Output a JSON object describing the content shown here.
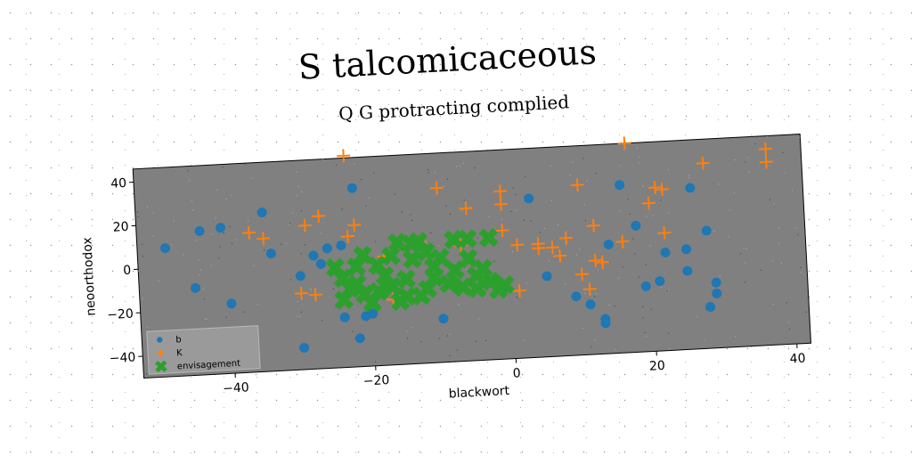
{
  "chart_data": {
    "type": "scatter",
    "title": "S talcomicaceous",
    "subtitle": "Q G protracting complied",
    "xlabel": "blackwort",
    "ylabel": "neoorthodox",
    "xlim": [
      -53,
      42
    ],
    "ylim": [
      -50,
      46
    ],
    "xticks": [
      -40,
      -20,
      0,
      20,
      40
    ],
    "yticks": [
      -40,
      -20,
      0,
      20,
      40
    ],
    "grid": false,
    "legend_position": "bottom-left",
    "background": "#808080",
    "series": [
      {
        "name": "b",
        "marker": "circle",
        "color": "#1f77b4",
        "points": [
          [
            -49,
            9
          ],
          [
            -45,
            -10
          ],
          [
            -44,
            16
          ],
          [
            -41,
            17
          ],
          [
            -40,
            -18
          ],
          [
            -35,
            23
          ],
          [
            -34,
            4
          ],
          [
            -30,
            -40
          ],
          [
            -30,
            -7
          ],
          [
            -28,
            2
          ],
          [
            -27,
            -2
          ],
          [
            -26,
            5
          ],
          [
            -24,
            6
          ],
          [
            -24,
            -27
          ],
          [
            -22,
            32
          ],
          [
            -22,
            -37
          ],
          [
            -21,
            -27
          ],
          [
            -20,
            -26
          ],
          [
            -10,
            -30
          ],
          [
            -1,
            -17
          ],
          [
            3,
            23
          ],
          [
            5,
            -13
          ],
          [
            9,
            -23
          ],
          [
            11,
            -27
          ],
          [
            13,
            -34
          ],
          [
            13,
            -36
          ],
          [
            14,
            0
          ],
          [
            16,
            27
          ],
          [
            18,
            8
          ],
          [
            19,
            -20
          ],
          [
            21,
            -18
          ],
          [
            22,
            -5
          ],
          [
            25,
            -4
          ],
          [
            25,
            -14
          ],
          [
            26,
            24
          ],
          [
            28,
            4
          ],
          [
            28,
            -31
          ],
          [
            29,
            -25
          ],
          [
            29,
            -20
          ]
        ]
      },
      {
        "name": "K",
        "marker": "plus",
        "color": "#ff7f0e",
        "points": [
          [
            -37,
            14
          ],
          [
            -35,
            11
          ],
          [
            -30,
            -15
          ],
          [
            -29,
            16
          ],
          [
            -28,
            -16
          ],
          [
            -27,
            20
          ],
          [
            -23,
            47
          ],
          [
            -23,
            10
          ],
          [
            -22,
            15
          ],
          [
            -18,
            0
          ],
          [
            -17,
            -20
          ],
          [
            -12,
            3
          ],
          [
            -10,
            30
          ],
          [
            -7,
            3
          ],
          [
            -6,
            20
          ],
          [
            -1,
            21
          ],
          [
            -1,
            27
          ],
          [
            -1,
            9
          ],
          [
            1,
            2
          ],
          [
            1,
            -19
          ],
          [
            4,
            2
          ],
          [
            4,
            0
          ],
          [
            6,
            0
          ],
          [
            7,
            -4
          ],
          [
            8,
            4
          ],
          [
            10,
            -13
          ],
          [
            10,
            28
          ],
          [
            11,
            -20
          ],
          [
            12,
            -7
          ],
          [
            12,
            9
          ],
          [
            13,
            -8
          ],
          [
            16,
            1
          ],
          [
            17,
            46
          ],
          [
            20,
            18
          ],
          [
            21,
            25
          ],
          [
            22,
            24
          ],
          [
            22,
            4
          ],
          [
            28,
            35
          ],
          [
            37,
            40
          ],
          [
            37,
            34
          ]
        ]
      },
      {
        "name": "envisagement",
        "marker": "x",
        "color": "#2ca02c",
        "points": [
          [
            -25,
            -4
          ],
          [
            -24,
            -9
          ],
          [
            -24,
            -19
          ],
          [
            -23,
            -14
          ],
          [
            -22,
            -4
          ],
          [
            -22,
            -12
          ],
          [
            -21,
            -17
          ],
          [
            -21,
            1
          ],
          [
            -20,
            -21
          ],
          [
            -19,
            -16
          ],
          [
            -19,
            -4
          ],
          [
            -18,
            -9
          ],
          [
            -17,
            0
          ],
          [
            -17,
            -14
          ],
          [
            -16,
            6
          ],
          [
            -16,
            -21
          ],
          [
            -15,
            -11
          ],
          [
            -15,
            -19
          ],
          [
            -14,
            5
          ],
          [
            -14,
            -2
          ],
          [
            -13,
            -19
          ],
          [
            -13,
            6
          ],
          [
            -12,
            -16
          ],
          [
            -12,
            1
          ],
          [
            -11,
            -6
          ],
          [
            -11,
            -11
          ],
          [
            -10,
            -2
          ],
          [
            -9,
            -14
          ],
          [
            -8,
            -8
          ],
          [
            -7,
            -16
          ],
          [
            -6,
            -3
          ],
          [
            -6,
            6
          ],
          [
            -5,
            -11
          ],
          [
            -5,
            -17
          ],
          [
            -4,
            -8
          ],
          [
            -3,
            6
          ],
          [
            -3,
            -14
          ],
          [
            -2,
            -18
          ],
          [
            -1,
            -16
          ],
          [
            -8,
            6
          ]
        ]
      }
    ]
  }
}
